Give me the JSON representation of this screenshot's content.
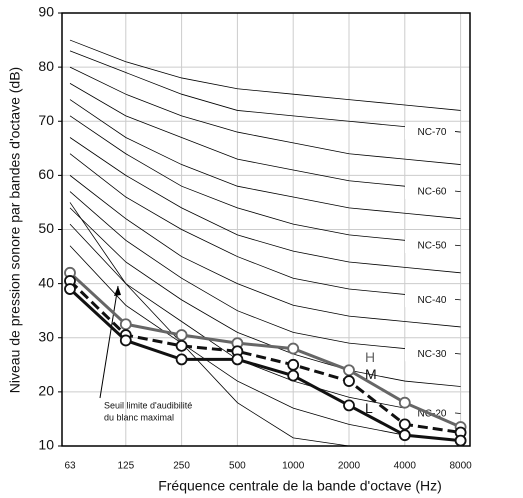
{
  "chart_data": {
    "type": "line",
    "x_label": "Fréquence centrale de la bande d'octave (Hz)",
    "y_label": "Niveau de pression sonore par bandes d'octave (dB)",
    "categories": [
      "63",
      "125",
      "250",
      "500",
      "1000",
      "2000",
      "4000",
      "8000"
    ],
    "ylim": [
      10,
      90
    ],
    "yticks": [
      10,
      20,
      30,
      40,
      50,
      60,
      70,
      80,
      90
    ],
    "grid": true,
    "nc_curves": [
      {
        "values": [
          47,
          36,
          29,
          22,
          17,
          14,
          12,
          11
        ]
      },
      {
        "name": "NC-20",
        "values": [
          51,
          40,
          33,
          26,
          22,
          19,
          17,
          16
        ]
      },
      {
        "values": [
          54,
          44,
          37,
          31,
          27,
          24,
          22,
          21
        ]
      },
      {
        "name": "NC-30",
        "values": [
          57,
          48,
          41,
          35,
          31,
          29,
          28,
          27
        ]
      },
      {
        "values": [
          60,
          52,
          45,
          40,
          36,
          34,
          33,
          32
        ]
      },
      {
        "name": "NC-40",
        "values": [
          64,
          56,
          50,
          45,
          41,
          39,
          38,
          37
        ]
      },
      {
        "values": [
          67,
          60,
          54,
          49,
          46,
          44,
          43,
          42
        ]
      },
      {
        "name": "NC-50",
        "values": [
          71,
          64,
          58,
          54,
          51,
          49,
          48,
          47
        ]
      },
      {
        "values": [
          74,
          67,
          62,
          58,
          56,
          54,
          53,
          52
        ]
      },
      {
        "name": "NC-60",
        "values": [
          77,
          71,
          67,
          63,
          61,
          59,
          58,
          57
        ]
      },
      {
        "values": [
          80,
          75,
          71,
          68,
          66,
          64,
          63,
          62
        ]
      },
      {
        "name": "NC-70",
        "values": [
          83,
          79,
          75,
          72,
          71,
          70,
          69,
          68
        ]
      },
      {
        "values": [
          85,
          81,
          78,
          76,
          75,
          74,
          73,
          72
        ]
      }
    ],
    "threshold": {
      "label": [
        "Seuil limite d'audibilité",
        "du blanc maximal"
      ],
      "values": [
        55,
        40,
        29,
        18,
        11.5,
        10,
        null,
        null
      ]
    },
    "series": [
      {
        "name": "H",
        "color": "#666666",
        "dash": false,
        "values": [
          42,
          32.5,
          30.5,
          29,
          28,
          24,
          18,
          13.5
        ]
      },
      {
        "name": "M",
        "color": "#111111",
        "dash": true,
        "values": [
          40.5,
          30.5,
          28.5,
          27.5,
          25,
          22,
          14,
          12.5
        ]
      },
      {
        "name": "L",
        "color": "#111111",
        "dash": false,
        "values": [
          39,
          29.5,
          26,
          26,
          23,
          17.5,
          12,
          11
        ]
      }
    ]
  }
}
